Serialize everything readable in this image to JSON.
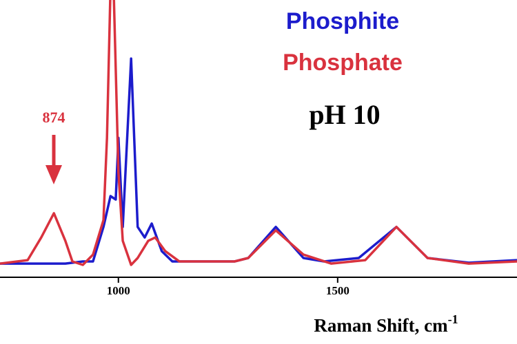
{
  "chart_data": {
    "type": "line",
    "xlabel": "Raman Shift, cm",
    "xlabel_exponent": "-1",
    "annotations": [
      "874",
      "pH 10"
    ],
    "legend": "top-right",
    "xlim": [
      730,
      1909
    ],
    "xticks": [
      1000,
      1500
    ],
    "ylim": [
      0,
      100
    ],
    "series": [
      {
        "name": "Phosphite",
        "color": "#1c1ccc",
        "x": [
          730,
          793,
          879,
          919,
          942,
          966,
          982,
          994,
          1000,
          1010,
          1029,
          1044,
          1060,
          1076,
          1099,
          1123,
          1265,
          1296,
          1359,
          1422,
          1469,
          1548,
          1634,
          1705,
          1799,
          1909
        ],
        "values": [
          5.2,
          5.2,
          5.2,
          6.0,
          6.0,
          19.1,
          30.8,
          29.5,
          52.9,
          19.1,
          83.0,
          19.1,
          15.1,
          20.4,
          9.9,
          6.0,
          6.0,
          7.3,
          19.1,
          7.3,
          6.0,
          7.3,
          19.1,
          7.3,
          5.5,
          6.5
        ]
      },
      {
        "name": "Phosphate",
        "color": "#d9323e",
        "x": [
          730,
          793,
          824,
          853,
          879,
          895,
          919,
          942,
          966,
          974,
          982,
          989,
          1000,
          1010,
          1029,
          1044,
          1068,
          1084,
          1107,
          1139,
          1265,
          1296,
          1359,
          1422,
          1485,
          1563,
          1634,
          1705,
          1799,
          1909
        ],
        "values": [
          5.2,
          6.5,
          15.1,
          24.3,
          13.8,
          6.0,
          4.7,
          8.6,
          21.7,
          52.9,
          110,
          110,
          39.9,
          13.8,
          4.7,
          7.3,
          13.8,
          15.1,
          9.9,
          6.0,
          6.0,
          7.3,
          17.8,
          8.6,
          5.2,
          6.5,
          19.1,
          7.3,
          5.2,
          6.0
        ]
      }
    ]
  }
}
